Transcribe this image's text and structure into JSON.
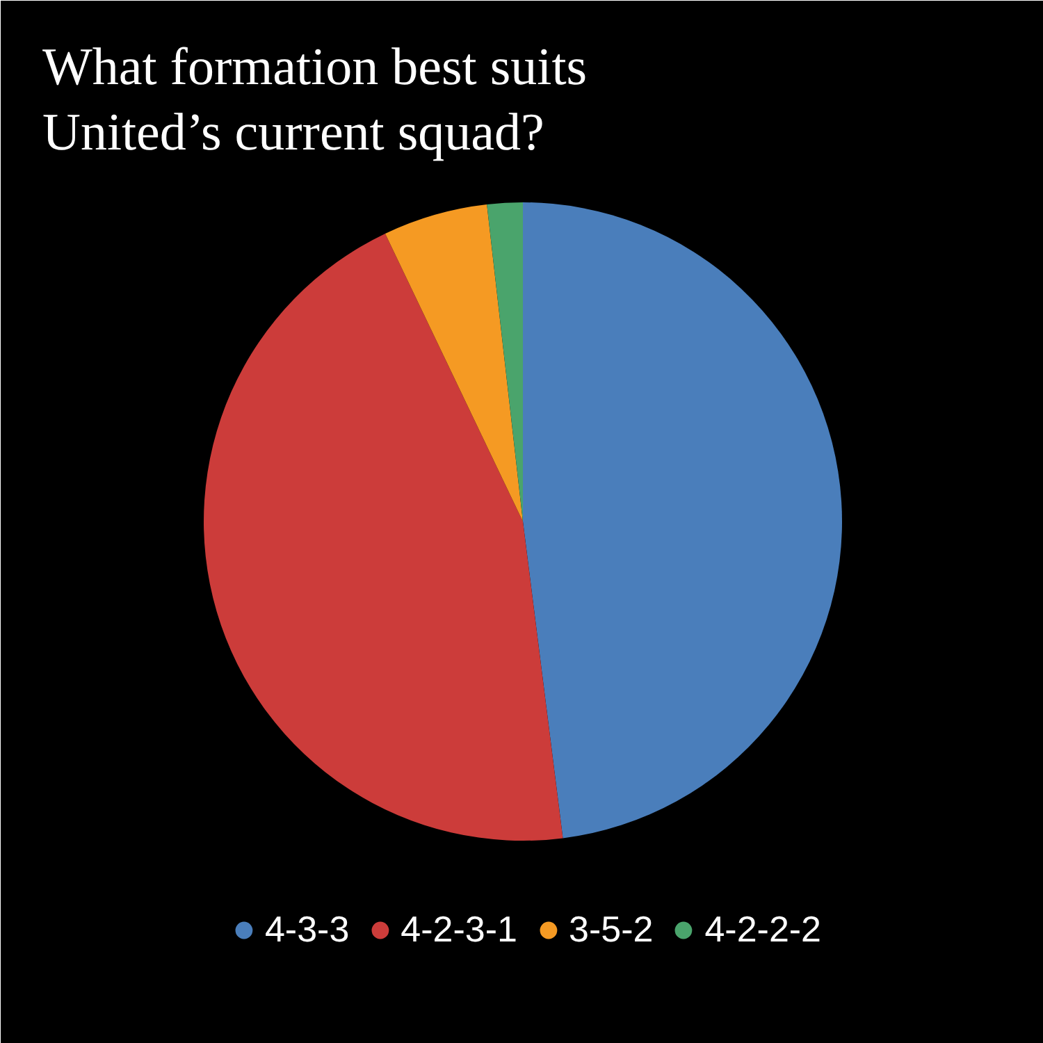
{
  "chart_data": {
    "type": "pie",
    "title": "What formation best suits United’s current squad?",
    "categories": [
      "4-3-3",
      "4-2-3-1",
      "3-5-2",
      "4-2-2-2"
    ],
    "values": [
      48,
      44.9,
      5.3,
      1.8
    ],
    "colors": [
      "#4a7ebb",
      "#cc3c3a",
      "#f59a23",
      "#4aa46c"
    ],
    "legend": "bottom"
  }
}
